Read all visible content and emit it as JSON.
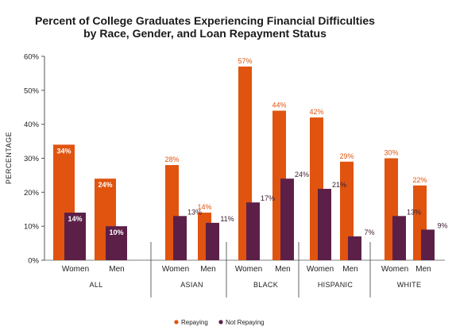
{
  "chart_data": {
    "type": "bar",
    "title_line1": "Percent of College Graduates Experiencing Financial Difficulties",
    "title_line2": "by Race, Gender, and Loan Repayment Status",
    "ylabel": "PERCENTAGE",
    "ylim": [
      0,
      60
    ],
    "y_ticks": [
      "0%",
      "10%",
      "20%",
      "30%",
      "40%",
      "50%",
      "60%"
    ],
    "grid": false,
    "legend_position": "bottom-center",
    "colors": {
      "repaying": "#e0540f",
      "not_repaying": "#5c2048"
    },
    "groups": [
      {
        "label": "ALL",
        "categories": [
          {
            "label": "Women",
            "repaying": 34,
            "not_repaying": 14,
            "repaying_label": "34%",
            "not_repaying_label": "14%"
          },
          {
            "label": "Men",
            "repaying": 24,
            "not_repaying": 10,
            "repaying_label": "24%",
            "not_repaying_label": "10%"
          }
        ]
      },
      {
        "label": "ASIAN",
        "categories": [
          {
            "label": "Women",
            "repaying": 28,
            "not_repaying": 13,
            "repaying_label": "28%",
            "not_repaying_label": "13%"
          },
          {
            "label": "Men",
            "repaying": 14,
            "not_repaying": 11,
            "repaying_label": "14%",
            "not_repaying_label": "11%"
          }
        ]
      },
      {
        "label": "BLACK",
        "categories": [
          {
            "label": "Women",
            "repaying": 57,
            "not_repaying": 17,
            "repaying_label": "57%",
            "not_repaying_label": "17%"
          },
          {
            "label": "Men",
            "repaying": 44,
            "not_repaying": 24,
            "repaying_label": "44%",
            "not_repaying_label": "24%"
          }
        ]
      },
      {
        "label": "HISPANIC",
        "categories": [
          {
            "label": "Women",
            "repaying": 42,
            "not_repaying": 21,
            "repaying_label": "42%",
            "not_repaying_label": "21%"
          },
          {
            "label": "Men",
            "repaying": 29,
            "not_repaying": 7,
            "repaying_label": "29%",
            "not_repaying_label": "7%"
          }
        ]
      },
      {
        "label": "WHITE",
        "categories": [
          {
            "label": "Women",
            "repaying": 30,
            "not_repaying": 13,
            "repaying_label": "30%",
            "not_repaying_label": "13%"
          },
          {
            "label": "Men",
            "repaying": 22,
            "not_repaying": 9,
            "repaying_label": "22%",
            "not_repaying_label": "9%"
          }
        ]
      }
    ],
    "series": [
      {
        "name": "Repaying",
        "key": "repaying"
      },
      {
        "name": "Not Repaying",
        "key": "not_repaying"
      }
    ]
  }
}
